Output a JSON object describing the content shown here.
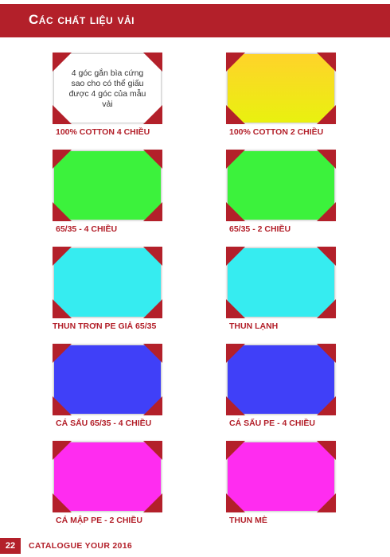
{
  "header": {
    "title": "Các chất liệu vải"
  },
  "swatches": [
    {
      "label": "100% COTTON 4 CHIỀU",
      "note": "4 góc gắn bìa cứng sao cho có thể giấu được 4 góc của mẫu vải",
      "color": "#ffffff"
    },
    {
      "label": "100% COTTON 2 CHIỀU",
      "color_top": "#ffd32a",
      "color_bottom": "#e9f10f"
    },
    {
      "label": "65/35 -  4 CHIỀU",
      "color": "#3cf23c"
    },
    {
      "label": "65/35 -  2 CHIỀU",
      "color": "#3cf23c"
    },
    {
      "label": "THUN TRƠN PE GIẢ 65/35",
      "color": "#36ecf0"
    },
    {
      "label": "THUN LẠNH",
      "color": "#36ecf0"
    },
    {
      "label": "CÁ SẤU 65/35 -  4 CHIỀU",
      "color": "#4040f8"
    },
    {
      "label": "CÁ SẤU PE - 4 CHIỀU",
      "color": "#4040f8"
    },
    {
      "label": "CÁ MẬP PE - 2 CHIỀU",
      "color": "#ff2cf0"
    },
    {
      "label": "THUN MÈ",
      "color": "#ff2cf0"
    }
  ],
  "footer": {
    "page_number": "22",
    "text": "CATALOGUE YOUR 2016"
  },
  "colors": {
    "accent": "#b3202a"
  }
}
